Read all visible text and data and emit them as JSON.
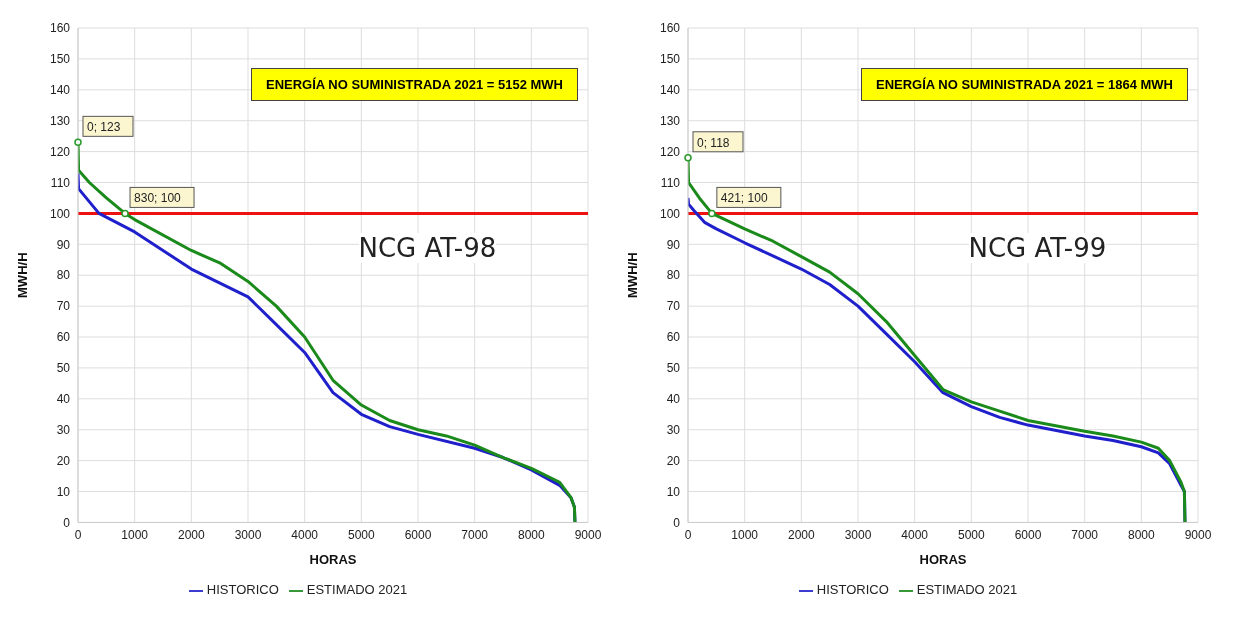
{
  "chart_data": [
    {
      "type": "line",
      "xlabel": "HORAS",
      "ylabel": "MWH/H",
      "xlim": [
        0,
        9000
      ],
      "xticks": [
        0,
        1000,
        2000,
        3000,
        4000,
        5000,
        6000,
        7000,
        8000,
        9000
      ],
      "ylim": [
        0,
        160
      ],
      "yticks": [
        0,
        10,
        20,
        30,
        40,
        50,
        60,
        70,
        80,
        90,
        100,
        110,
        120,
        130,
        140,
        150,
        160
      ],
      "grid": true,
      "legend": "bottom",
      "line_style": "solid",
      "series": [
        {
          "name": "HISTORICO",
          "color": "#1f1fcc",
          "x": [
            0,
            10,
            100,
            370,
            1000,
            2000,
            3000,
            3500,
            4000,
            4500,
            5000,
            5500,
            6000,
            7000,
            7500,
            8000,
            8500,
            8700,
            8760,
            8770
          ],
          "values": [
            113,
            108,
            106,
            100,
            94,
            82,
            73,
            64,
            55,
            42,
            35,
            31,
            28.5,
            24,
            21,
            17,
            12,
            8,
            5,
            0
          ]
        },
        {
          "name": "ESTIMADO 2021",
          "color": "#1a8a1a",
          "x": [
            0,
            10,
            200,
            500,
            830,
            1000,
            2000,
            2500,
            3000,
            3500,
            4000,
            4500,
            5000,
            5500,
            6000,
            6500,
            7000,
            7500,
            8000,
            8500,
            8700,
            8760,
            8770
          ],
          "values": [
            123,
            114,
            110,
            105,
            100,
            98,
            88,
            84,
            78,
            70,
            60,
            46,
            38,
            33,
            30,
            28,
            25,
            21,
            17.5,
            13,
            8,
            5,
            0
          ]
        }
      ],
      "ref_lines": [
        {
          "axis": "y",
          "value": 100,
          "color": "#ee1111"
        }
      ],
      "annotations": [
        "ENERGÍA NO SUMINISTRADA 2021 = 5152 MWH",
        "NCG AT-98",
        {
          "text": "0; 123",
          "x": 0,
          "y": 123
        },
        {
          "text": "830; 100",
          "x": 830,
          "y": 100
        }
      ]
    },
    {
      "type": "line",
      "xlabel": "HORAS",
      "ylabel": "MWH/H",
      "xlim": [
        0,
        9000
      ],
      "xticks": [
        0,
        1000,
        2000,
        3000,
        4000,
        5000,
        6000,
        7000,
        8000,
        9000
      ],
      "ylim": [
        0,
        160
      ],
      "yticks": [
        0,
        10,
        20,
        30,
        40,
        50,
        60,
        70,
        80,
        90,
        100,
        110,
        120,
        130,
        140,
        150,
        160
      ],
      "grid": true,
      "legend": "bottom",
      "line_style": "solid",
      "series": [
        {
          "name": "HISTORICO",
          "color": "#1f1fcc",
          "x": [
            0,
            10,
            100,
            300,
            500,
            1000,
            2000,
            2500,
            3000,
            3500,
            4000,
            4500,
            5000,
            5500,
            6000,
            7000,
            7500,
            8000,
            8300,
            8500,
            8700,
            8760,
            8770
          ],
          "values": [
            105,
            103,
            101,
            97,
            95,
            90.5,
            82,
            77,
            70,
            61,
            52,
            42,
            37.5,
            34,
            31.5,
            28,
            26.5,
            24.5,
            22.5,
            19,
            12,
            10,
            0
          ]
        },
        {
          "name": "ESTIMADO 2021",
          "color": "#1a8a1a",
          "x": [
            0,
            10,
            200,
            421,
            1000,
            1500,
            2000,
            2500,
            3000,
            3500,
            4000,
            4500,
            5000,
            5500,
            6000,
            7000,
            7500,
            8000,
            8300,
            8500,
            8700,
            8760,
            8770
          ],
          "values": [
            118,
            110,
            105,
            100,
            95,
            91,
            86,
            81,
            74,
            65,
            54,
            43,
            39,
            36,
            33,
            29.5,
            28,
            26,
            24,
            20,
            13,
            10,
            0
          ]
        }
      ],
      "ref_lines": [
        {
          "axis": "y",
          "value": 100,
          "color": "#ee1111"
        }
      ],
      "annotations": [
        "ENERGÍA NO SUMINISTRADA 2021 = 1864 MWH",
        "NCG AT-99",
        {
          "text": "0; 118",
          "x": 0,
          "y": 118
        },
        {
          "text": "421; 100",
          "x": 421,
          "y": 100
        }
      ]
    }
  ]
}
